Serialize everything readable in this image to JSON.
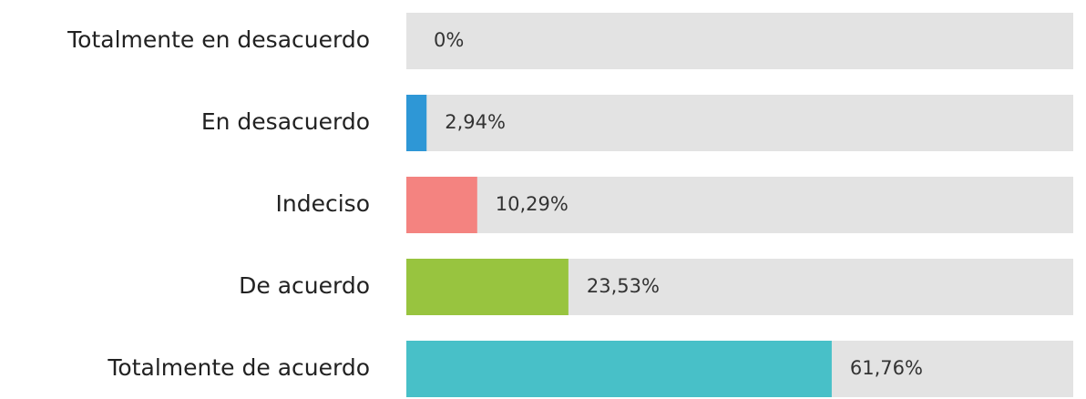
{
  "chart_data": {
    "type": "bar",
    "orientation": "horizontal",
    "categories": [
      "Totalmente en desacuerdo",
      "En desacuerdo",
      "Indeciso",
      "De acuerdo",
      "Totalmente de acuerdo"
    ],
    "values": [
      0,
      2.94,
      10.29,
      23.53,
      61.76
    ],
    "value_labels": [
      "0%",
      "2,94%",
      "10,29%",
      "23,53%",
      "61,76%"
    ],
    "colors": [
      "#2e97d6",
      "#2e97d6",
      "#f48380",
      "#98c43f",
      "#48c0c8"
    ]
  }
}
